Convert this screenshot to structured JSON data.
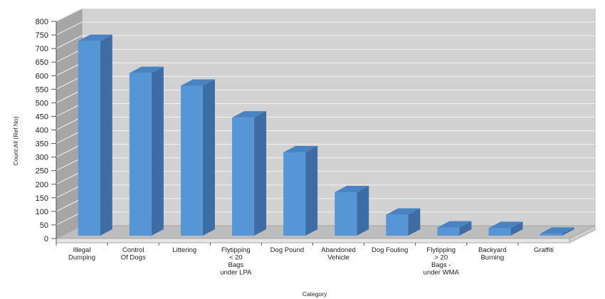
{
  "chart_data": {
    "type": "bar",
    "style": "3d-column",
    "xlabel": "Category",
    "ylabel": "Count:All (Ref No)",
    "ylim": [
      0,
      800
    ],
    "ytick_step": 50,
    "yticks": [
      "0",
      "50",
      "100",
      "150",
      "200",
      "250",
      "300",
      "350",
      "400",
      "450",
      "500",
      "550",
      "600",
      "650",
      "700",
      "750",
      "800"
    ],
    "grid": true,
    "legend": "none",
    "categories": [
      [
        "Illegal",
        "Dumping"
      ],
      [
        "Control",
        "Of Dogs"
      ],
      [
        "Littering"
      ],
      [
        "Flytipping",
        "< 20",
        "Bags",
        "under LPA"
      ],
      [
        "Dog Pound"
      ],
      [
        "Abandoned",
        "Vehicle"
      ],
      [
        "Dog Fouling"
      ],
      [
        "Flytipping",
        "> 20",
        "Bags -",
        "under WMA"
      ],
      [
        "Backyard",
        "Burning"
      ],
      [
        "Graffiti"
      ]
    ],
    "values": [
      717,
      599,
      552,
      435,
      307,
      160,
      77,
      30,
      28,
      7
    ],
    "colors": {
      "bar_front": "#5796D6",
      "bar_side": "#3E6CA5",
      "bar_top": "#4A83C2",
      "back_wall": "#D2D2D2",
      "side_wall": "#A6A6A6",
      "floor": "#BDBDBD",
      "grid": "#F2F2F2"
    }
  }
}
